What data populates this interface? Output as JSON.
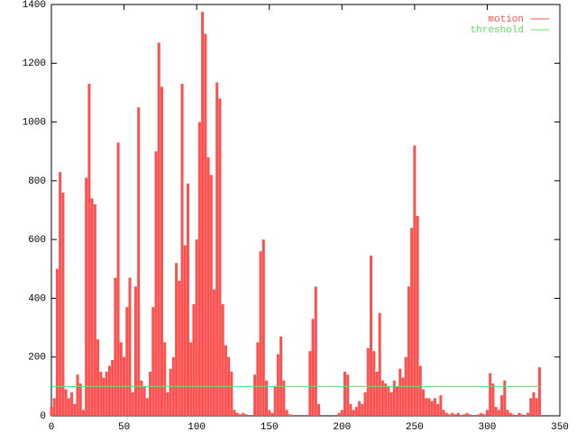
{
  "chart_data": {
    "type": "impulse",
    "xlim": [
      0,
      350
    ],
    "ylim": [
      0,
      1400
    ],
    "xticks": [
      0,
      50,
      100,
      150,
      200,
      250,
      300,
      350
    ],
    "yticks": [
      0,
      200,
      400,
      600,
      800,
      1000,
      1200,
      1400
    ],
    "legend": "top-right",
    "series": [
      {
        "name": "motion",
        "color": "#ff5050",
        "style": "impulses",
        "x": [
          0,
          2,
          4,
          6,
          8,
          10,
          12,
          14,
          16,
          18,
          20,
          22,
          24,
          26,
          28,
          30,
          32,
          34,
          36,
          38,
          40,
          42,
          44,
          46,
          48,
          50,
          52,
          54,
          56,
          58,
          60,
          62,
          64,
          66,
          68,
          70,
          72,
          74,
          76,
          78,
          80,
          82,
          84,
          86,
          88,
          90,
          92,
          94,
          96,
          98,
          100,
          102,
          104,
          106,
          108,
          110,
          112,
          114,
          116,
          118,
          120,
          122,
          124,
          126,
          128,
          130,
          132,
          134,
          136,
          138,
          140,
          142,
          144,
          146,
          148,
          150,
          152,
          154,
          156,
          158,
          160,
          162,
          164,
          166,
          168,
          170,
          172,
          174,
          176,
          178,
          180,
          182,
          184,
          186,
          188,
          190,
          192,
          194,
          196,
          198,
          200,
          202,
          204,
          206,
          208,
          210,
          212,
          214,
          216,
          218,
          220,
          222,
          224,
          226,
          228,
          230,
          232,
          234,
          236,
          238,
          240,
          242,
          244,
          246,
          248,
          250,
          252,
          254,
          256,
          258,
          260,
          262,
          264,
          266,
          268,
          270,
          272,
          274,
          276,
          278,
          280,
          282,
          284,
          286,
          288,
          290,
          292,
          294,
          296,
          298,
          300,
          302,
          304,
          306,
          308,
          310,
          312,
          314,
          316,
          318,
          320,
          322,
          324,
          326,
          328,
          330,
          332,
          334,
          336
        ],
        "values": [
          30,
          60,
          500,
          830,
          760,
          90,
          60,
          80,
          40,
          140,
          110,
          20,
          810,
          1130,
          740,
          720,
          260,
          150,
          130,
          150,
          170,
          190,
          470,
          930,
          250,
          200,
          370,
          470,
          80,
          440,
          1050,
          120,
          100,
          60,
          150,
          370,
          900,
          1270,
          1120,
          250,
          80,
          160,
          200,
          520,
          460,
          1130,
          580,
          790,
          250,
          380,
          600,
          1000,
          1375,
          1300,
          880,
          820,
          430,
          1135,
          1080,
          380,
          240,
          200,
          150,
          20,
          10,
          5,
          10,
          5,
          0,
          0,
          140,
          250,
          560,
          600,
          120,
          20,
          10,
          100,
          210,
          270,
          120,
          20,
          5,
          0,
          0,
          0,
          0,
          0,
          0,
          220,
          330,
          440,
          40,
          0,
          0,
          0,
          0,
          0,
          0,
          10,
          20,
          150,
          140,
          40,
          20,
          30,
          50,
          40,
          80,
          230,
          545,
          220,
          150,
          350,
          120,
          110,
          100,
          80,
          120,
          100,
          160,
          130,
          200,
          440,
          640,
          920,
          680,
          170,
          90,
          60,
          60,
          50,
          60,
          40,
          70,
          20,
          10,
          5,
          10,
          5,
          10,
          0,
          5,
          10,
          5,
          0,
          0,
          5,
          10,
          5,
          20,
          145,
          110,
          30,
          20,
          70,
          120,
          20,
          10,
          5,
          0,
          10,
          5,
          0,
          10,
          60,
          80,
          60,
          165
        ]
      },
      {
        "name": "threshold",
        "color": "#66dd66",
        "style": "line",
        "x": [
          0,
          336
        ],
        "values": [
          100,
          100
        ]
      }
    ]
  }
}
